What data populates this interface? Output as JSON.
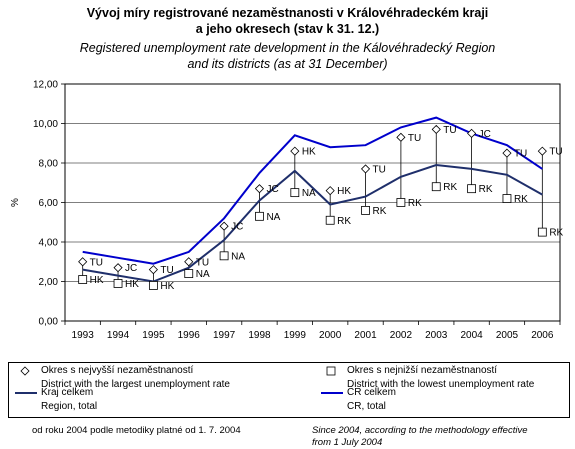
{
  "title": {
    "cz_line1": "Vývoj míry registrované nezaměstnanosti v Královéhradeckém kraji",
    "cz_line2": "a jeho okresech (stav k 31. 12.)",
    "en_line1": "Registered unemployment rate development in the Kálovéhradecký Region",
    "en_line2": "and its districts (as at 31 December)"
  },
  "chart_data": {
    "type": "line",
    "ylabel": "%",
    "xlabel": "",
    "ylim": [
      0,
      12
    ],
    "yticks": [
      "0,00",
      "2,00",
      "4,00",
      "6,00",
      "8,00",
      "10,00",
      "12,00"
    ],
    "grid": true,
    "categories": [
      "1993",
      "1994",
      "1995",
      "1996",
      "1997",
      "1998",
      "1999",
      "2000",
      "2001",
      "2002",
      "2003",
      "2004",
      "2005",
      "2006"
    ],
    "series": [
      {
        "name": "Kraj celkem / Region, total",
        "color": "#1f2f6b",
        "values": [
          2.6,
          2.3,
          2.0,
          2.7,
          4.1,
          6.1,
          7.6,
          5.9,
          6.3,
          7.3,
          7.9,
          7.7,
          7.4,
          6.4
        ]
      },
      {
        "name": "CR celkem / CR, total",
        "color": "#0000cc",
        "values": [
          3.5,
          3.2,
          2.9,
          3.5,
          5.2,
          7.5,
          9.4,
          8.8,
          8.9,
          9.8,
          10.3,
          9.5,
          8.9,
          7.7
        ]
      }
    ],
    "high_districts": {
      "name": "Okres s nejvyšší nezaměstnaností / District with the largest unemployment rate",
      "values": [
        3.0,
        2.7,
        2.6,
        3.0,
        4.8,
        6.7,
        8.6,
        6.6,
        7.7,
        9.3,
        9.7,
        9.5,
        8.5,
        8.6
      ],
      "labels": [
        "TU",
        "JC",
        "TU",
        "TU",
        "JC",
        "JC",
        "HK",
        "HK",
        "TU",
        "TU",
        "TU",
        "JC",
        "TU",
        "TU"
      ]
    },
    "low_districts": {
      "name": "Okres s nejnižší nezaměstnaností / District with the lowest unemployment rate",
      "values": [
        2.1,
        1.9,
        1.8,
        2.4,
        3.3,
        5.3,
        6.5,
        5.1,
        5.6,
        6.0,
        6.8,
        6.7,
        6.2,
        4.5
      ],
      "labels": [
        "HK",
        "HK",
        "HK",
        "NA",
        "NA",
        "NA",
        "NA",
        "RK",
        "RK",
        "RK",
        "RK",
        "RK",
        "RK",
        "RK"
      ]
    }
  },
  "legend": {
    "high_cz": "Okres s nejvyšší nezaměstnaností",
    "high_en": "District with the largest unemployment rate",
    "low_cz": "Okres s nejnižší nezaměstnaností",
    "low_en": "District with the lowest unemployment rate",
    "region_cz": "Kraj celkem",
    "region_en": "Region, total",
    "cr_cz": "CR celkem",
    "cr_en": "CR, total"
  },
  "footnote": {
    "left": "od roku 2004 podle metodiky platné od 1. 7. 2004",
    "right_line1": "Since 2004, according to the methodology effective",
    "right_line2": "from 1 July 2004"
  }
}
